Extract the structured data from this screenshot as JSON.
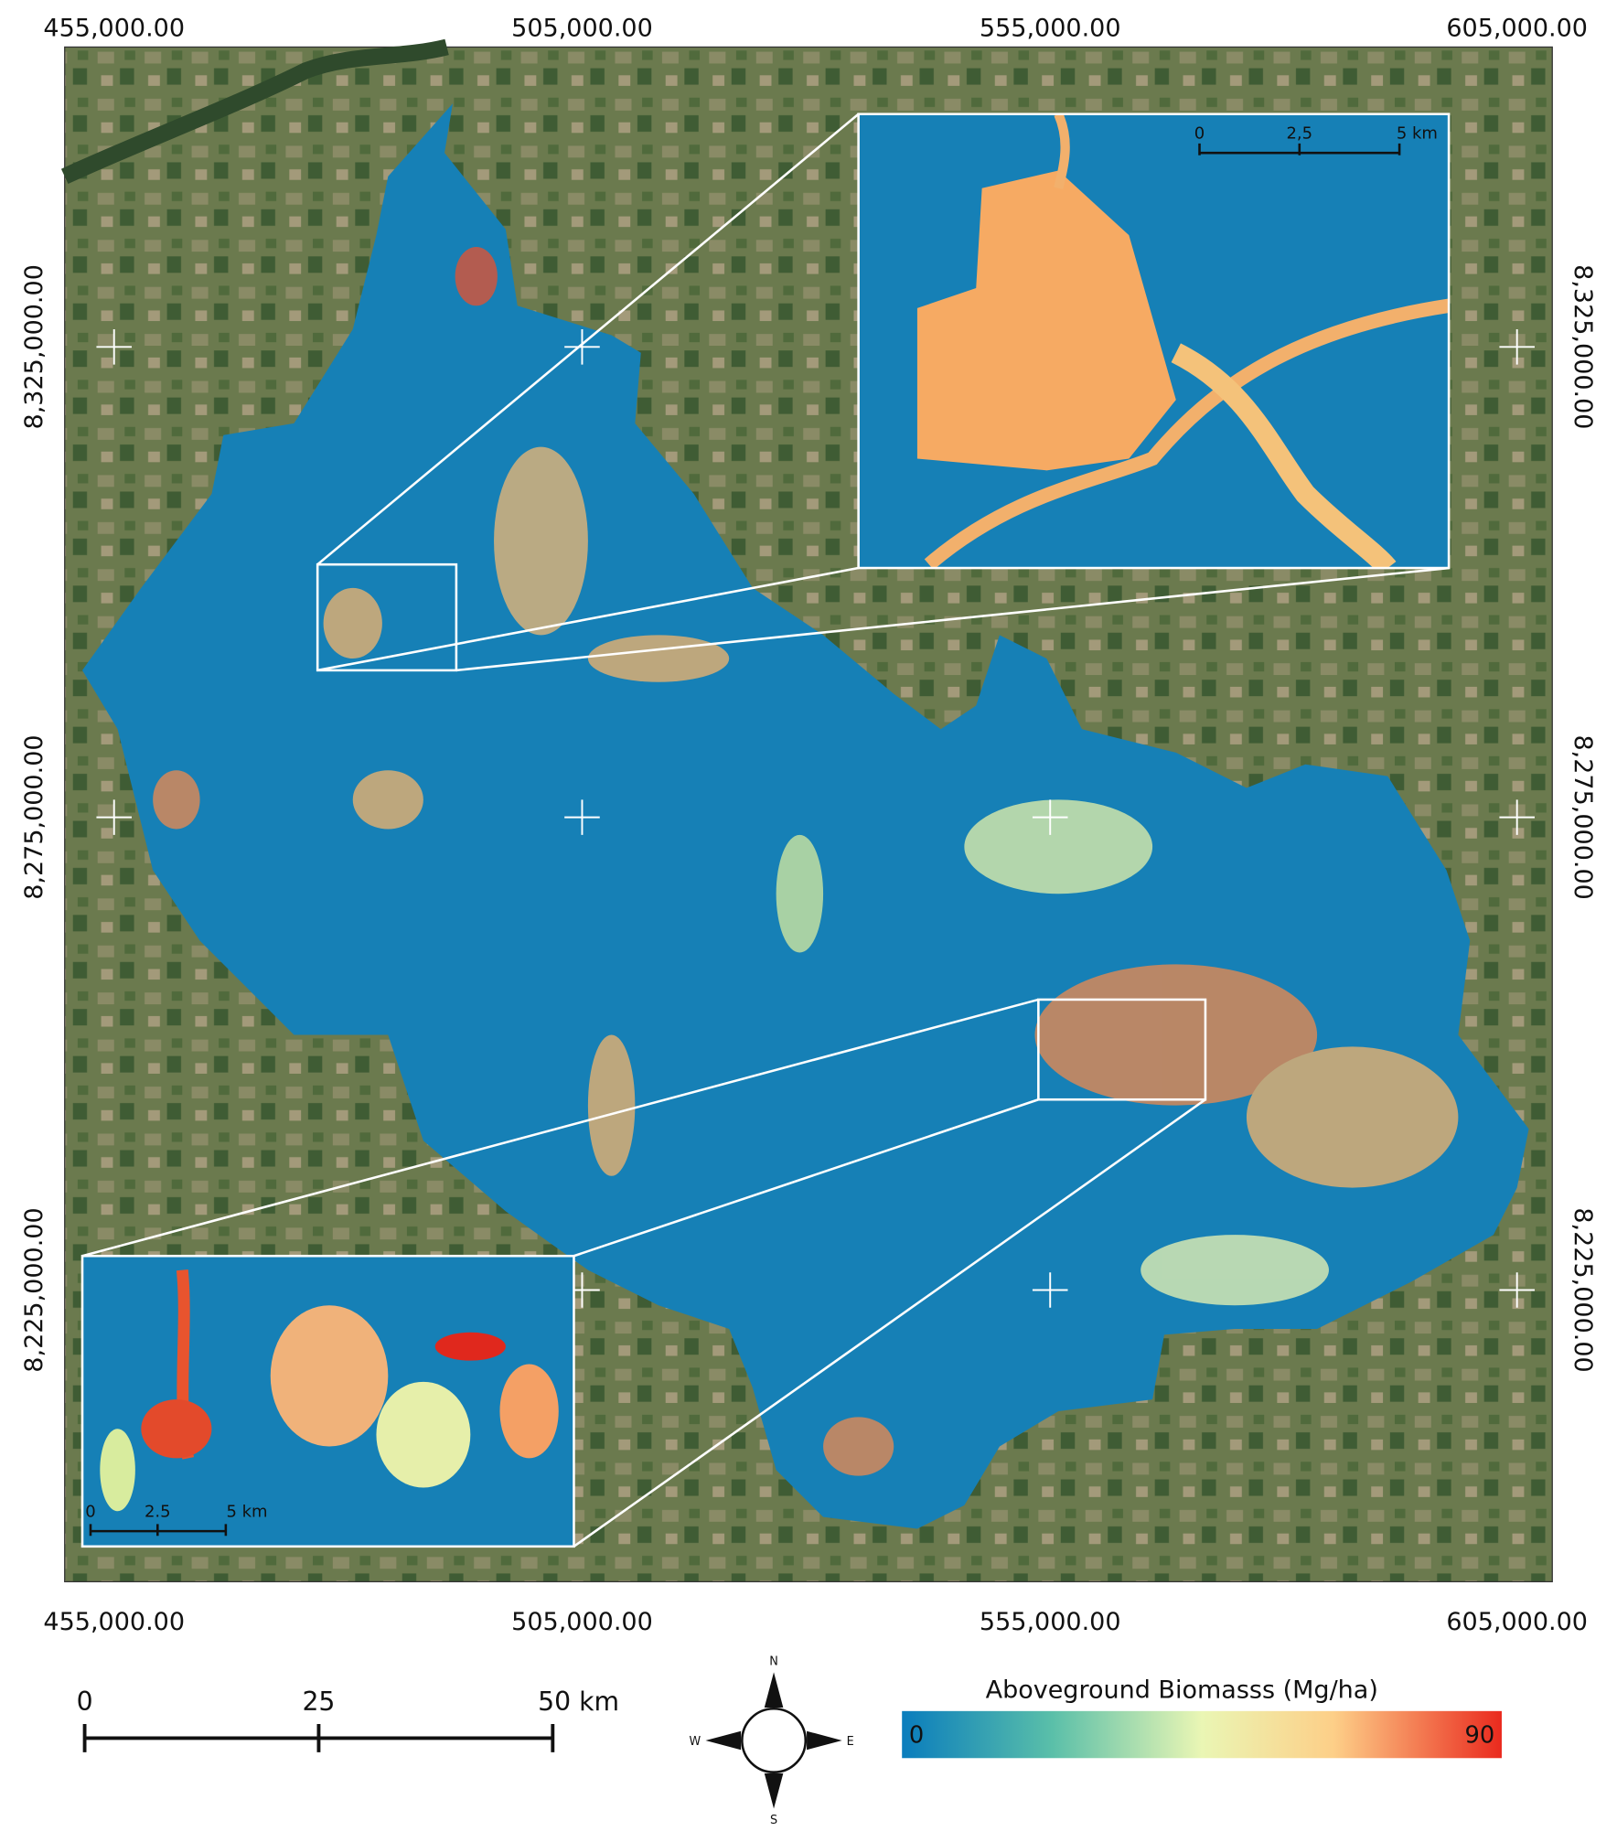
{
  "map": {
    "x_labels": [
      "455,000.00",
      "505,000.00",
      "555,000.00",
      "605,000.00"
    ],
    "y_labels": [
      "8,325,000.00",
      "8,275,000.00",
      "8,225,000.00"
    ],
    "inset_top_scale": [
      "0",
      "2,5",
      "5 km"
    ],
    "inset_bottom_scale": [
      "0",
      "2.5",
      "5 km"
    ],
    "scale_bar": [
      "0",
      "25",
      "50 km"
    ],
    "compass": [
      "N",
      "S",
      "W",
      "E"
    ],
    "legend": {
      "title": "Aboveground Biomasss (Mg/ha)",
      "min": "0",
      "max": "90"
    }
  }
}
